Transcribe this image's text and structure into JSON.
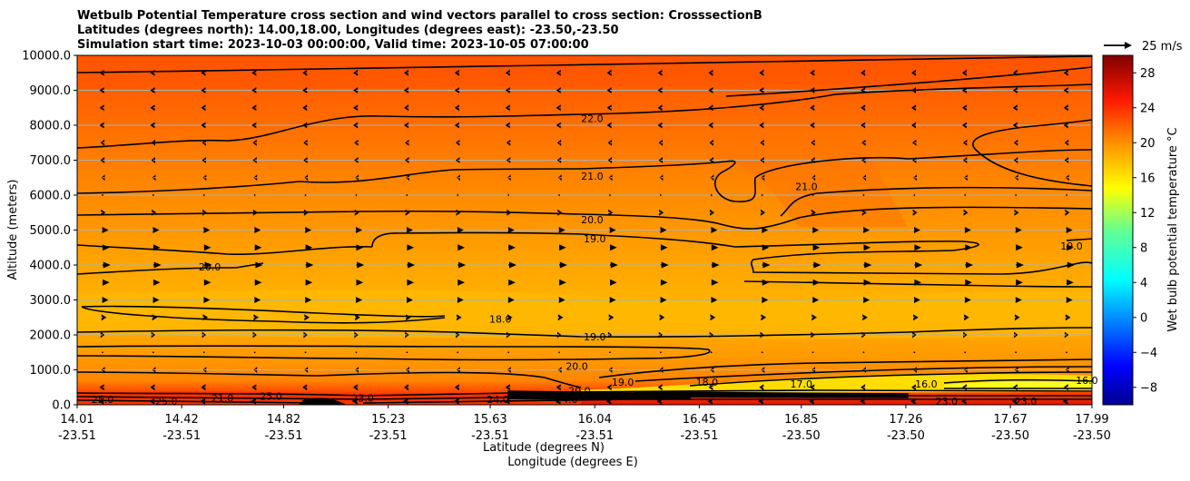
{
  "chart_data": {
    "type": "contour",
    "title_lines": [
      "Wetbulb Potential Temperature cross section and wind vectors parallel to cross section: CrosssectionB",
      "Latitudes (degrees north): 14.00,18.00, Longitudes (degrees east): -23.50,-23.50",
      "Simulation start time: 2023-10-03 00:00:00, Valid time: 2023-10-05 07:00:00"
    ],
    "ylabel": "Altitude (meters)",
    "xlabel_lat": "Latitude (degrees N)",
    "xlabel_lon": "Longitude (degrees E)",
    "ylim": [
      0,
      10000
    ],
    "xlim": [
      14.01,
      17.99
    ],
    "y_ticks": [
      "0.0",
      "1000.0",
      "2000.0",
      "3000.0",
      "4000.0",
      "5000.0",
      "6000.0",
      "7000.0",
      "8000.0",
      "9000.0",
      "10000.0"
    ],
    "y_tick_values": [
      0,
      1000,
      2000,
      3000,
      4000,
      5000,
      6000,
      7000,
      8000,
      9000,
      10000
    ],
    "x_ticks": [
      {
        "lat": "14.01",
        "lon": "-23.51",
        "value": 14.01
      },
      {
        "lat": "14.42",
        "lon": "-23.51",
        "value": 14.42
      },
      {
        "lat": "14.82",
        "lon": "-23.51",
        "value": 14.82
      },
      {
        "lat": "15.23",
        "lon": "-23.51",
        "value": 15.23
      },
      {
        "lat": "15.63",
        "lon": "-23.51",
        "value": 15.63
      },
      {
        "lat": "16.04",
        "lon": "-23.51",
        "value": 16.04
      },
      {
        "lat": "16.45",
        "lon": "-23.51",
        "value": 16.45
      },
      {
        "lat": "16.85",
        "lon": "-23.50",
        "value": 16.85
      },
      {
        "lat": "17.26",
        "lon": "-23.50",
        "value": 17.26
      },
      {
        "lat": "17.67",
        "lon": "-23.50",
        "value": 17.67
      },
      {
        "lat": "17.99",
        "lon": "-23.50",
        "value": 17.99
      }
    ],
    "colorbar": {
      "label": "Wet bulb potential temperature °C",
      "range": [
        -10,
        30
      ],
      "ticks": [
        "−8",
        "−4",
        "0",
        "4",
        "8",
        "12",
        "16",
        "20",
        "24",
        "28"
      ],
      "tick_values": [
        -8,
        -4,
        0,
        4,
        8,
        12,
        16,
        20,
        24,
        28
      ]
    },
    "quiver_key": "25 m/s",
    "contour_levels_labeled": [
      {
        "text": "22.0",
        "lat": 16.03,
        "alt": 8200
      },
      {
        "text": "21.0",
        "lat": 16.03,
        "alt": 6550
      },
      {
        "text": "21.0",
        "lat": 16.87,
        "alt": 6250
      },
      {
        "text": "20.0",
        "lat": 16.03,
        "alt": 5300
      },
      {
        "text": "19.0",
        "lat": 16.04,
        "alt": 4750
      },
      {
        "text": "19.0",
        "lat": 17.91,
        "alt": 4550
      },
      {
        "text": "20.0",
        "lat": 14.53,
        "alt": 3950
      },
      {
        "text": "18.0",
        "lat": 15.67,
        "alt": 2450
      },
      {
        "text": "19.0",
        "lat": 16.04,
        "alt": 1950
      },
      {
        "text": "20.0",
        "lat": 15.97,
        "alt": 1100
      },
      {
        "text": "19.0",
        "lat": 16.15,
        "alt": 650
      },
      {
        "text": "18.0",
        "lat": 16.48,
        "alt": 650
      },
      {
        "text": "17.0",
        "lat": 16.85,
        "alt": 600
      },
      {
        "text": "16.0",
        "lat": 17.34,
        "alt": 600
      },
      {
        "text": "16.0",
        "lat": 17.97,
        "alt": 700
      },
      {
        "text": "20.0",
        "lat": 15.98,
        "alt": 400
      },
      {
        "text": "24.0",
        "lat": 15.66,
        "alt": 150
      },
      {
        "text": "24.0",
        "lat": 15.93,
        "alt": 150
      },
      {
        "text": "25.0",
        "lat": 14.77,
        "alt": 250
      },
      {
        "text": "25.0",
        "lat": 14.11,
        "alt": 150
      },
      {
        "text": "25.0",
        "lat": 14.36,
        "alt": 100
      },
      {
        "text": "23.0",
        "lat": 15.13,
        "alt": 200
      },
      {
        "text": "21.0",
        "lat": 14.58,
        "alt": 200
      },
      {
        "text": "23.0",
        "lat": 17.42,
        "alt": 100
      },
      {
        "text": "23.0",
        "lat": 17.73,
        "alt": 100
      }
    ],
    "wind": {
      "description": "Wind vectors parallel to cross section; weak westward flow aloft, eastward flow 2000-5500 m, westward near surface.",
      "levels_m": [
        100,
        500,
        1000,
        1500,
        2000,
        2500,
        3000,
        3500,
        4000,
        4500,
        5000,
        5500,
        6000,
        6500,
        7000,
        7500,
        8000,
        8500,
        9000,
        9500
      ],
      "u_ms": [
        -4,
        -3,
        -1,
        0,
        2,
        4,
        6,
        7,
        8,
        7,
        6,
        3,
        0,
        -1,
        -2,
        -2,
        -3,
        -3,
        -3,
        -3
      ]
    }
  }
}
